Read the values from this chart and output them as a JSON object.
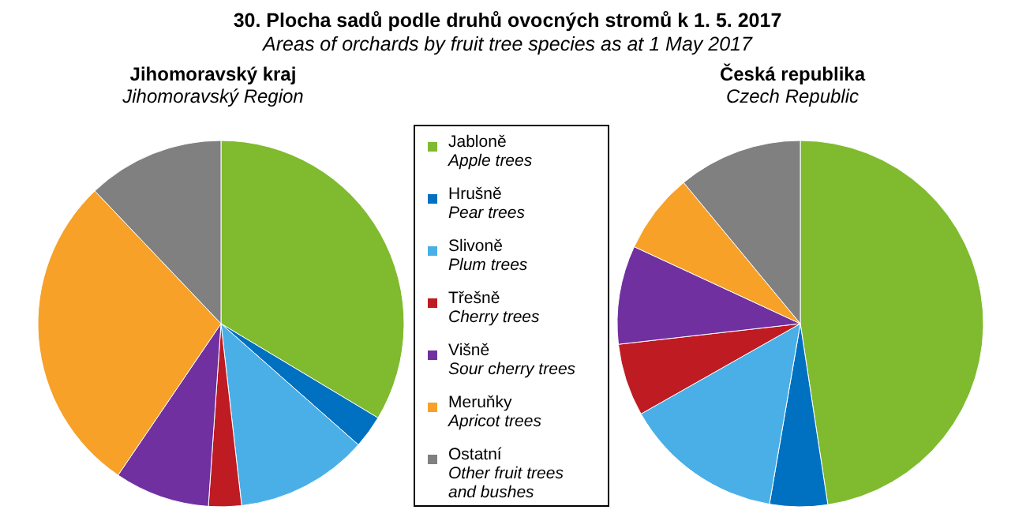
{
  "chart_data": [
    {
      "type": "pie",
      "title": "Jihomoravský kraj",
      "subtitle": "Jihomoravský Region",
      "annotations": [
        "30. Plocha sadů podle druhů ovocných stromů k 1. 5. 2017",
        "Areas of orchards by fruit tree species as at 1 May 2017"
      ],
      "legend": "right",
      "categories": [
        "Jabloně\nApple trees",
        "Hrušně\nPear trees",
        "Slivoně\nPlum trees",
        "Třešně\nCherry trees",
        "Višně\nSour cherry trees",
        "Meruňky\nApricot trees",
        "Ostatní\nOther fruit trees\nand bushes"
      ],
      "values": [
        33.6,
        2.9,
        11.7,
        2.9,
        8.4,
        28.4,
        12.1
      ],
      "colors": [
        "#7fba2f",
        "#0070c0",
        "#4aafe6",
        "#be1b22",
        "#7030a0",
        "#f7a128",
        "#808080"
      ]
    },
    {
      "type": "pie",
      "title": "Česká republika",
      "subtitle": "Czech Republic",
      "categories": [
        null,
        null,
        null,
        null,
        null,
        null,
        null
      ],
      "values": [
        47.6,
        5.1,
        14.1,
        6.4,
        8.7,
        7.1,
        11.0
      ],
      "colors": [
        "#7fba2f",
        "#0070c0",
        "#4aafe6",
        "#be1b22",
        "#7030a0",
        "#f7a128",
        "#808080"
      ]
    }
  ]
}
